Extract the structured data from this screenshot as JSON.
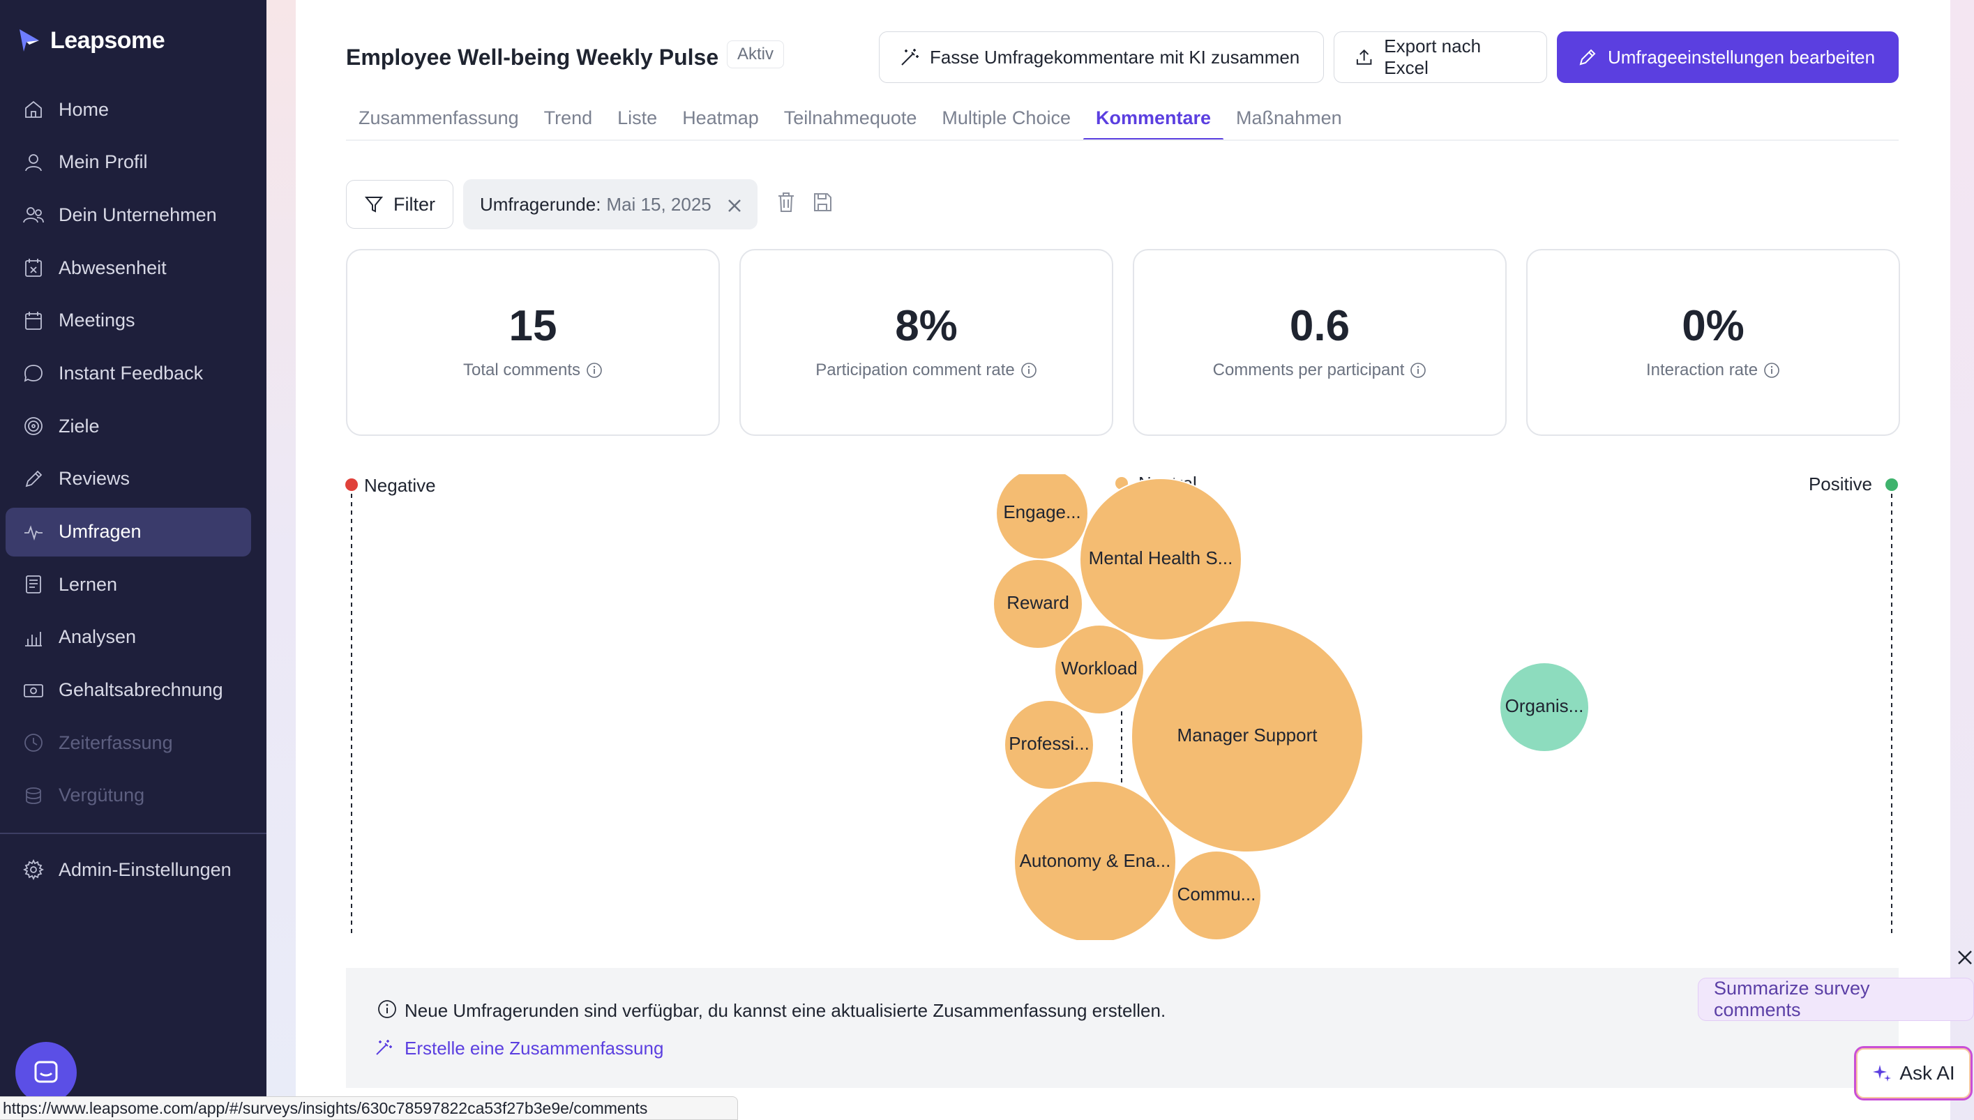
{
  "app": {
    "name": "Leapsome"
  },
  "sidebar": {
    "items": [
      {
        "label": "Home",
        "icon": "home-icon"
      },
      {
        "label": "Mein Profil",
        "icon": "user-icon"
      },
      {
        "label": "Dein Unternehmen",
        "icon": "users-icon"
      },
      {
        "label": "Abwesenheit",
        "icon": "calendar-x-icon"
      },
      {
        "label": "Meetings",
        "icon": "calendar-icon"
      },
      {
        "label": "Instant Feedback",
        "icon": "chat-bubble-icon"
      },
      {
        "label": "Ziele",
        "icon": "target-icon"
      },
      {
        "label": "Reviews",
        "icon": "pencil-icon"
      },
      {
        "label": "Umfragen",
        "icon": "pulse-icon",
        "active": true
      },
      {
        "label": "Lernen",
        "icon": "book-icon"
      },
      {
        "label": "Analysen",
        "icon": "bar-chart-icon"
      },
      {
        "label": "Gehaltsabrechnung",
        "icon": "money-icon"
      },
      {
        "label": "Zeiterfassung",
        "icon": "clock-icon",
        "disabled": true
      },
      {
        "label": "Vergütung",
        "icon": "coins-icon",
        "disabled": true
      }
    ],
    "admin": {
      "label": "Admin-Einstellungen",
      "icon": "gear-icon"
    }
  },
  "header": {
    "title": "Employee Well-being Weekly Pulse",
    "status_badge": "Aktiv",
    "buttons": {
      "summarize": "Fasse Umfragekommentare mit KI zusammen",
      "export": "Export nach Excel",
      "edit": "Umfrageeinstellungen bearbeiten"
    }
  },
  "tabs": [
    {
      "label": "Zusammenfassung"
    },
    {
      "label": "Trend"
    },
    {
      "label": "Liste"
    },
    {
      "label": "Heatmap"
    },
    {
      "label": "Teilnahmequote"
    },
    {
      "label": "Multiple Choice"
    },
    {
      "label": "Kommentare",
      "active": true
    },
    {
      "label": "Maßnahmen"
    }
  ],
  "filters": {
    "filter_label": "Filter",
    "chip_label": "Umfragerunde:",
    "chip_value": "Mai 15, 2025"
  },
  "metrics": [
    {
      "value": "15",
      "label": "Total comments"
    },
    {
      "value": "8%",
      "label": "Participation comment rate"
    },
    {
      "value": "0.6",
      "label": "Comments per participant"
    },
    {
      "value": "0%",
      "label": "Interaction rate"
    }
  ],
  "chart_data": {
    "type": "scatter",
    "axis_labels": {
      "left": "Negative",
      "center": "Neutral",
      "right": "Positive"
    },
    "colors": {
      "negative": "#e0413a",
      "neutral": "#f4bc72",
      "positive": "#8ddcbe",
      "neutral_marker": "#f4bc72",
      "positive_marker": "#3fb36d"
    },
    "topics": [
      {
        "name": "Engage...",
        "sentiment": "neutral"
      },
      {
        "name": "Mental Health S...",
        "sentiment": "neutral"
      },
      {
        "name": "Reward",
        "sentiment": "neutral"
      },
      {
        "name": "Workload",
        "sentiment": "neutral"
      },
      {
        "name": "Manager Support",
        "sentiment": "neutral"
      },
      {
        "name": "Professi...",
        "sentiment": "neutral"
      },
      {
        "name": "Autonomy & Ena...",
        "sentiment": "neutral"
      },
      {
        "name": "Commu...",
        "sentiment": "neutral"
      },
      {
        "name": "Organis...",
        "sentiment": "positive"
      }
    ]
  },
  "banner": {
    "text": "Neue Umfragerunden sind verfügbar, du kannst eine aktualisierte Zusammenfassung erstellen.",
    "link": "Erstelle eine Zusammenfassung"
  },
  "ai": {
    "summarize_pill": "Summarize survey comments",
    "ask_ai": "Ask AI"
  },
  "status_url": "https://www.leapsome.com/app/#/surveys/insights/630c78597822ca53f27b3e9e/comments"
}
